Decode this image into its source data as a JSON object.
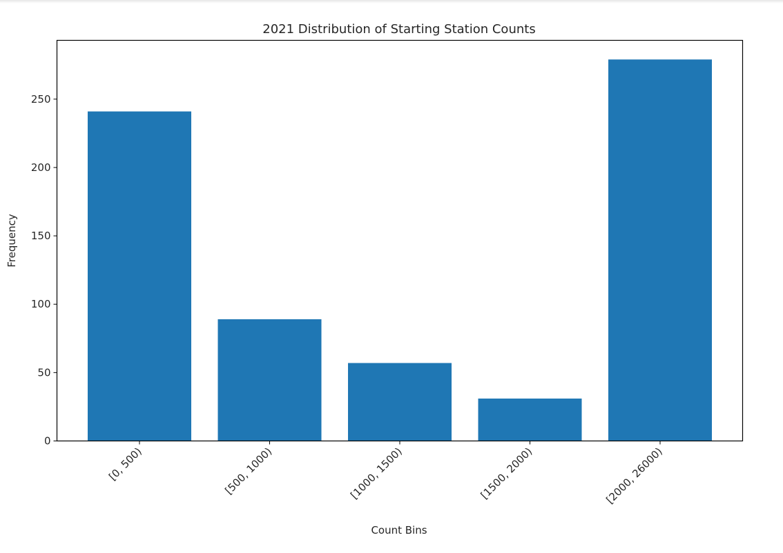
{
  "chart_data": {
    "type": "bar",
    "title": "2021 Distribution of Starting Station Counts",
    "xlabel": "Count Bins",
    "ylabel": "Frequency",
    "categories": [
      "[0, 500)",
      "[500, 1000)",
      "[1000, 1500)",
      "[1500, 2000)",
      "[2000, 26000)"
    ],
    "values": [
      241,
      89,
      57,
      31,
      279
    ],
    "ylim": [
      0,
      293
    ],
    "yticks": [
      0,
      50,
      100,
      150,
      200,
      250
    ],
    "grid": false,
    "bar_color": "#1f77b4"
  }
}
